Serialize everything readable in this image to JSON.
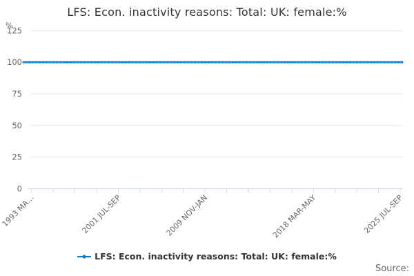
{
  "title": "LFS: Econ. inactivity reasons: Total: UK: female:%",
  "source_label": "Source:",
  "legend": {
    "items": [
      {
        "label": "LFS: Econ. inactivity reasons: Total: UK: female:%",
        "color": "#107dc2",
        "marker": "line-dot"
      }
    ]
  },
  "chart_data": {
    "type": "line",
    "title": "LFS: Econ. inactivity reasons: Total: UK: female:%",
    "xlabel": "",
    "ylabel": "%",
    "ylim": [
      0,
      125
    ],
    "yticks": [
      0,
      25,
      50,
      75,
      100,
      125
    ],
    "grid": true,
    "legend_position": "bottom",
    "x_start": "1993 MAR-MAY",
    "x_end": "2025 JUL-SEP",
    "n_points": 389,
    "x_tick_count": 18,
    "x_tick_labels": [
      "1993 MA…",
      "",
      "",
      "",
      "2001 JUL-SEP",
      "",
      "",
      "",
      "2009 NOV-JAN",
      "",
      "",
      "",
      "",
      "2018 MAR-MAY",
      "",
      "",
      "",
      "2025 JUL-SEP"
    ],
    "series": [
      {
        "name": "LFS: Econ. inactivity reasons: Total: UK: female:%",
        "constant_value": 100,
        "color": "#107dc2"
      }
    ],
    "axis_line_color": "#ccd6eb",
    "gridline_color": "#e6e6e6",
    "label_color": "#666666"
  }
}
